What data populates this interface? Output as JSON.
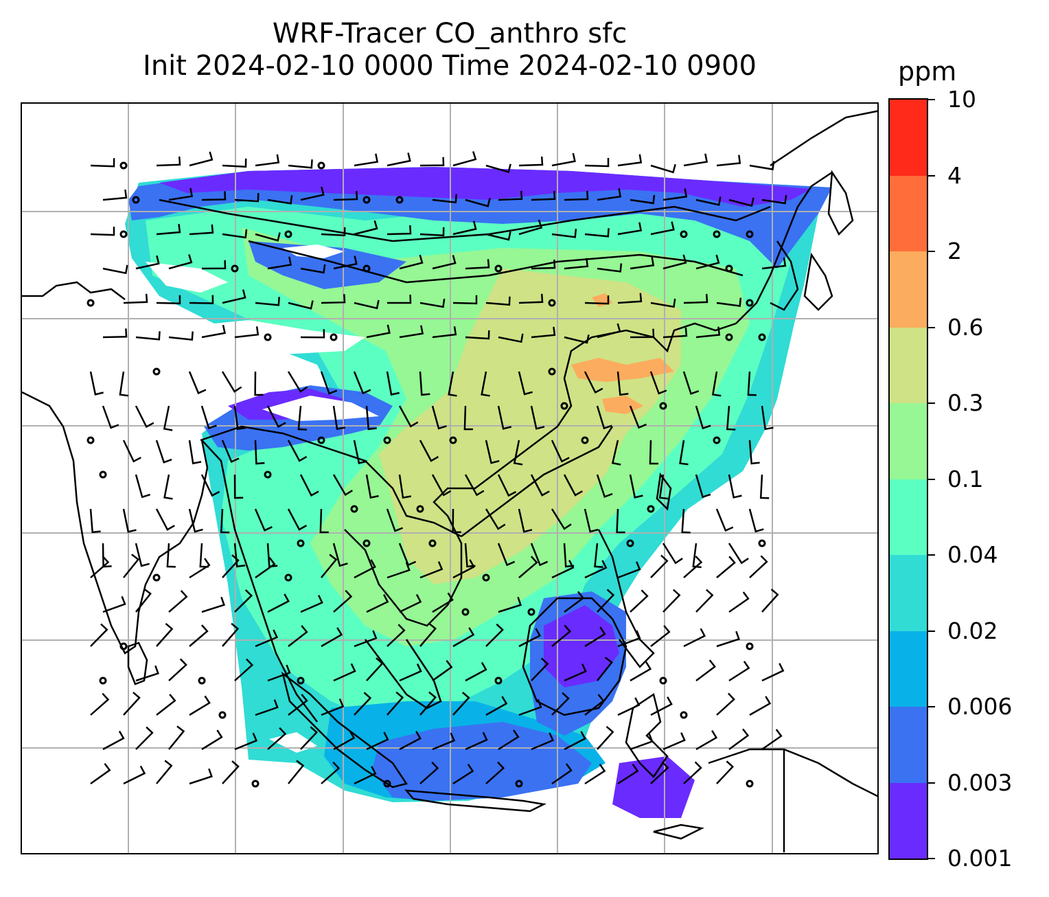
{
  "title": {
    "line1": "WRF-Tracer CO_anthro sfc",
    "line2": "Init 2024-02-10 0000 Time 2024-02-10 0900"
  },
  "colorbar": {
    "unit": "ppm",
    "ticks": [
      "0.001",
      "0.003",
      "0.006",
      "0.02",
      "0.04",
      "0.1",
      "0.3",
      "0.6",
      "2",
      "4",
      "10"
    ],
    "colors": [
      "#6a2bff",
      "#3a72f2",
      "#08b2e8",
      "#30dcd4",
      "#5cffc2",
      "#96f794",
      "#cfe285",
      "#fcac5e",
      "#ff6e3a",
      "#ff2a1a"
    ]
  },
  "map": {
    "gridlines": true,
    "grid_color": "#b0b0b0",
    "coastline_color": "#000000",
    "wind_barbs": true
  }
}
